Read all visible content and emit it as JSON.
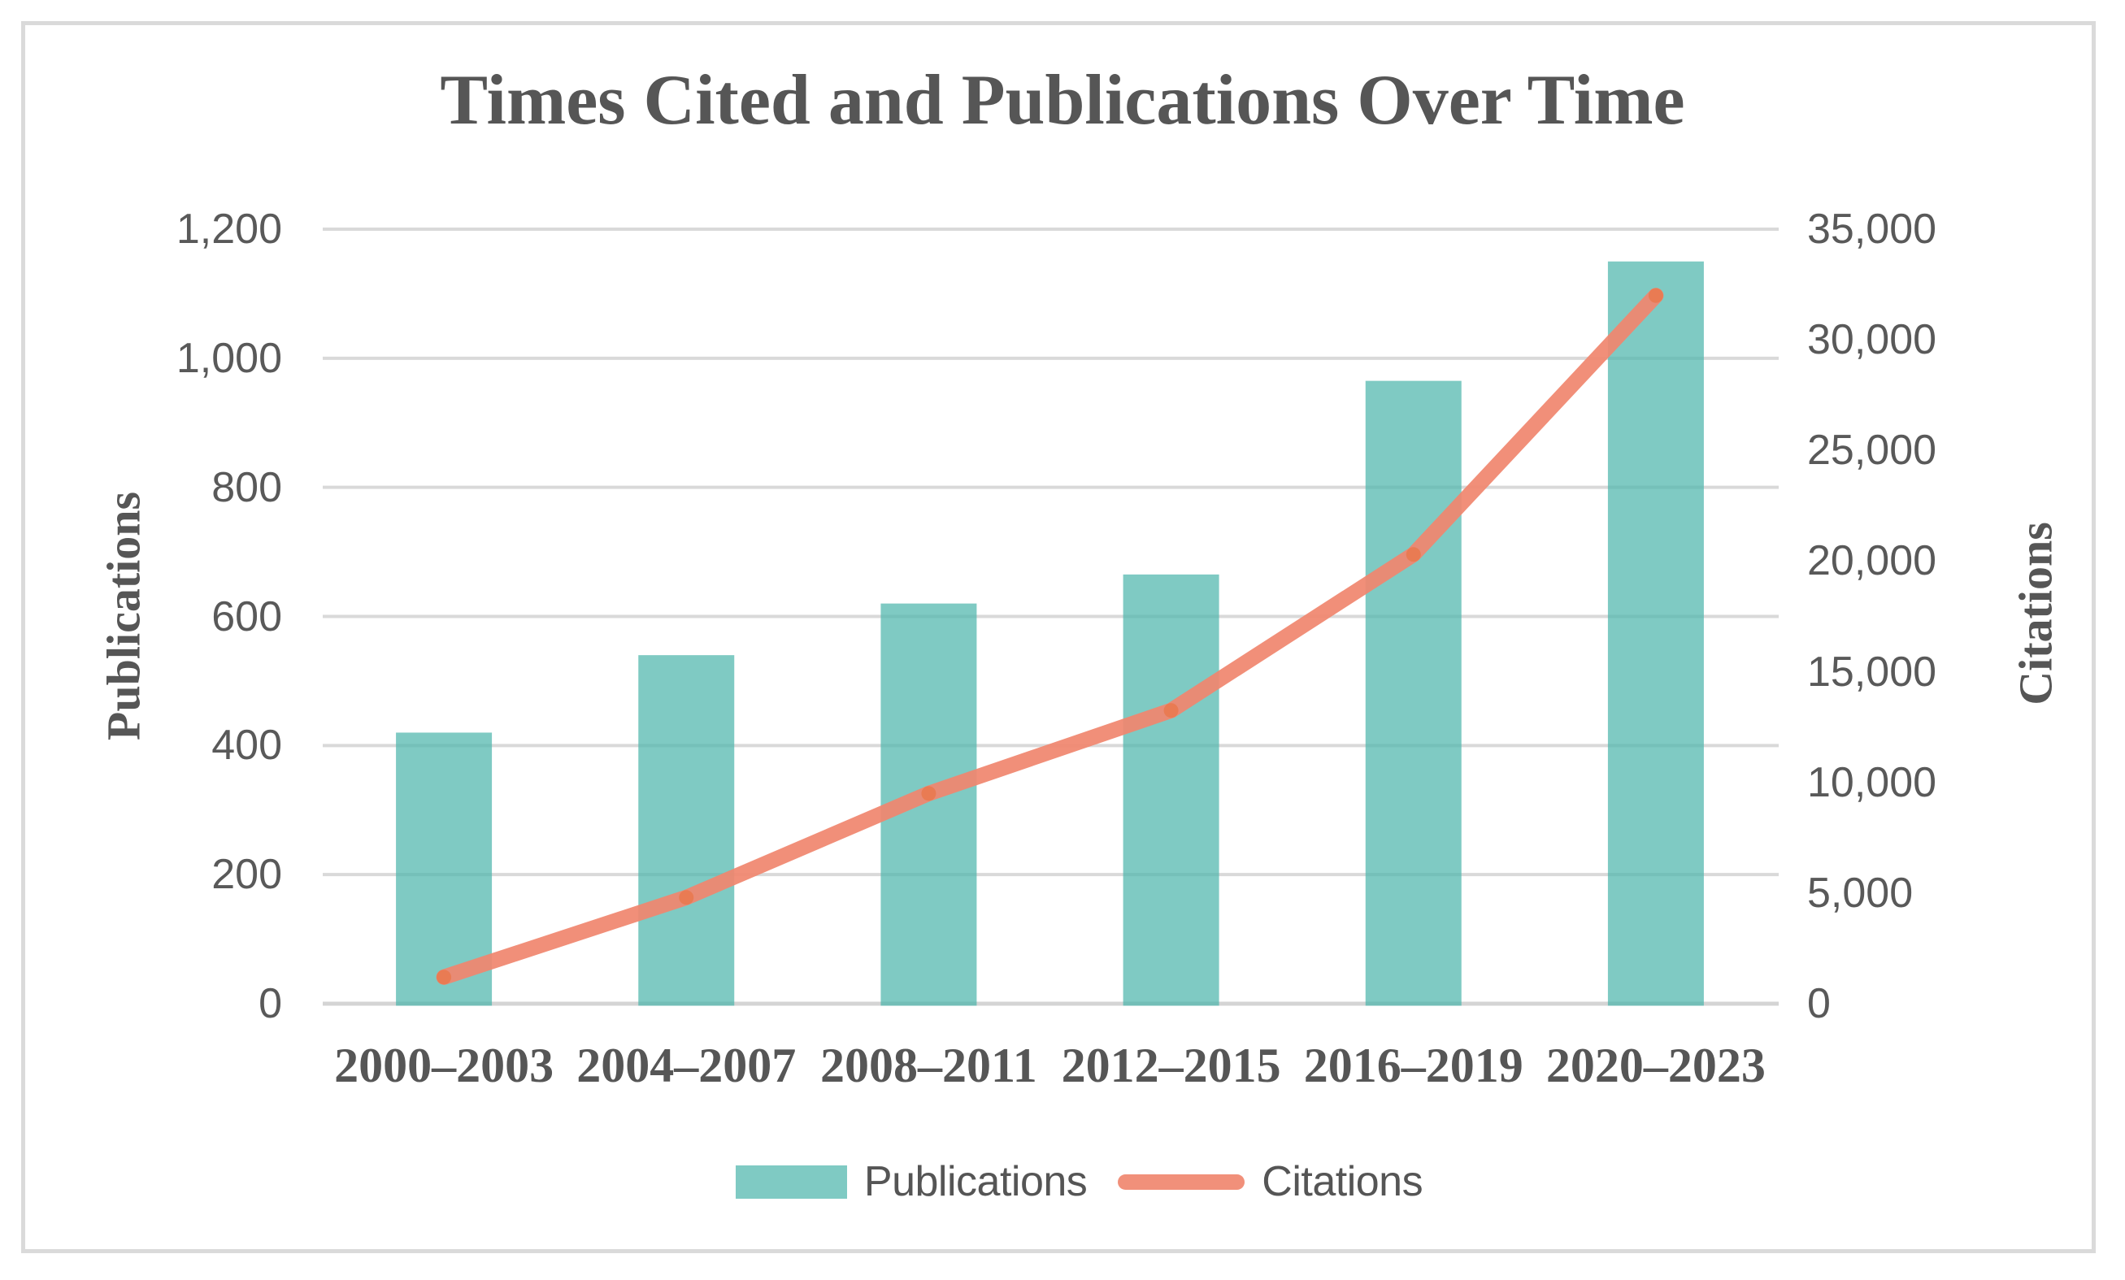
{
  "title": "Times Cited and Publications Over Time",
  "chart_data": {
    "type": "bar",
    "subtype": "combo-bar-line-dual-axis",
    "categories": [
      "2000–2003",
      "2004–2007",
      "2008–2011",
      "2012–2015",
      "2016–2019",
      "2020–2023"
    ],
    "series": [
      {
        "name": "Publications",
        "type": "bar",
        "axis": "left",
        "values": [
          420,
          540,
          620,
          665,
          965,
          1150
        ]
      },
      {
        "name": "Citations",
        "type": "line",
        "axis": "right",
        "values": [
          1200,
          4800,
          9500,
          13250,
          20300,
          32000
        ]
      }
    ],
    "left_axis": {
      "title": "Publications",
      "min": 0,
      "max": 1200,
      "step": 200,
      "tick_labels": [
        "1,200",
        "1,000",
        "800",
        "600",
        "400",
        "200",
        "0"
      ]
    },
    "right_axis": {
      "title": "Citations",
      "min": 0,
      "max": 35000,
      "step": 5000,
      "tick_labels": [
        "35,000",
        "30,000",
        "25,000",
        "20,000",
        "15,000",
        "10,000",
        "5,000",
        "0"
      ]
    },
    "grid": true,
    "legend_position": "bottom"
  },
  "legend": {
    "items": [
      {
        "label": "Publications",
        "swatch": "bar-swatch"
      },
      {
        "label": "Citations",
        "swatch": "line-swatch"
      }
    ]
  },
  "colors": {
    "bar_fill": "#7fcac3",
    "bar_fill_base": "rgba(77,182,172,0.72)",
    "line": "#f1907a",
    "line_marker": "#e97950",
    "gridline": "#d9d9d9",
    "axis_line": "#d4d4d4",
    "text_serif": "#565656",
    "text_sans": "#595959",
    "frame_border": "#dadada",
    "background": "#ffffff"
  }
}
